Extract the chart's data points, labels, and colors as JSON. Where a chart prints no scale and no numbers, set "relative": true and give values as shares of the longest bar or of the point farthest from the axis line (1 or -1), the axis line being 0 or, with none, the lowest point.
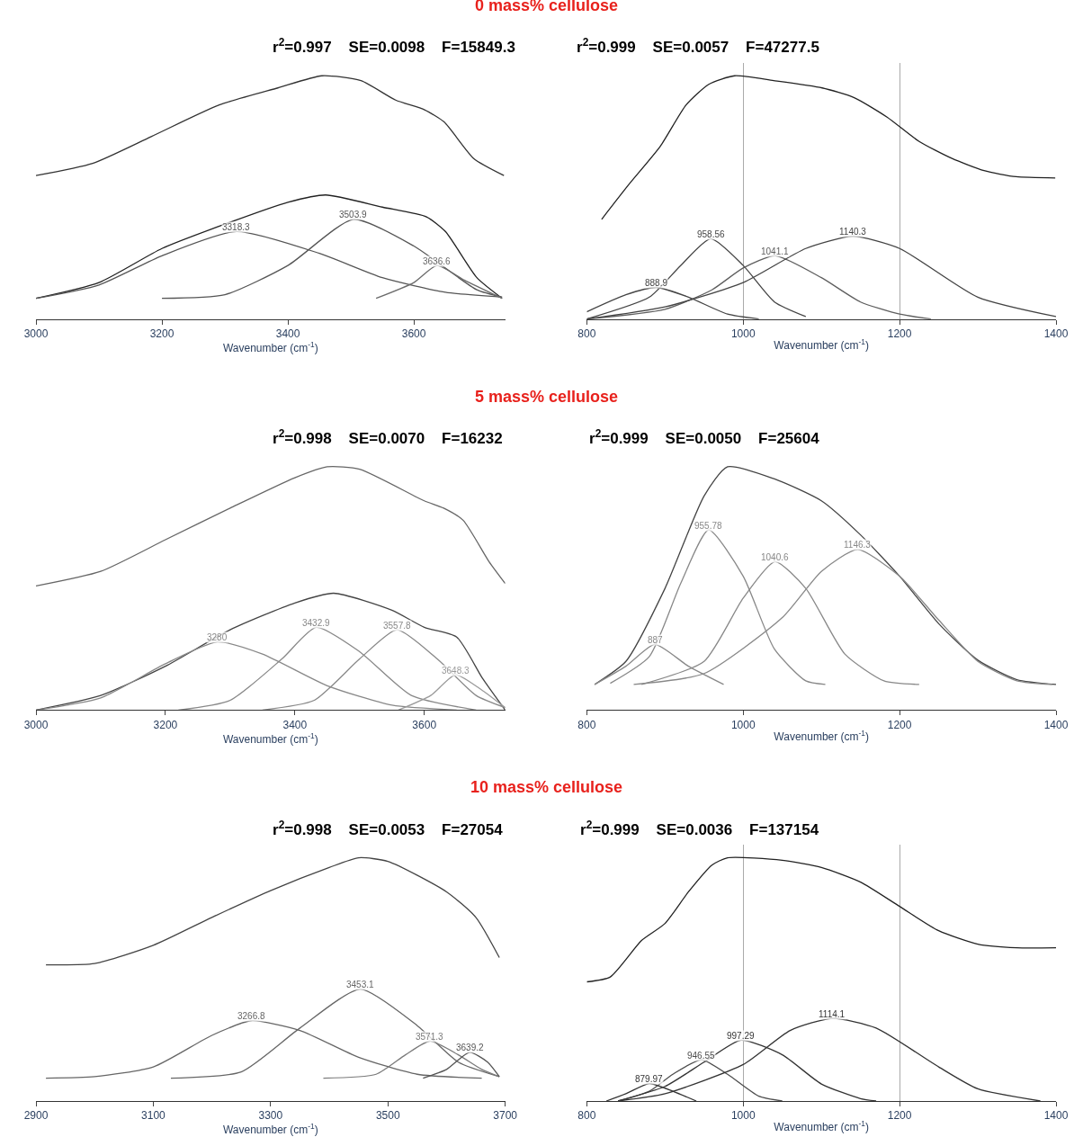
{
  "chart_data": [
    {
      "type": "line",
      "relative": true,
      "title": "r$^{2}$=0.997    SE=0.0098    F=15849.3",
      "xlabel": "Wavenumber (cm$^{-1}$)",
      "xlim": [
        3000,
        3745
      ],
      "xticks": [
        3000,
        3200,
        3400,
        3600
      ],
      "annotations": [
        "0 mass% cellulose"
      ],
      "series": [
        {
          "color": "#333333",
          "x": [
            3000,
            3090,
            3183,
            3291,
            3384,
            3454,
            3516,
            3571,
            3617,
            3648,
            3695,
            3743
          ],
          "values": [
            0.59,
            0.64,
            0.75,
            0.88,
            0.95,
            1.0,
            0.98,
            0.9,
            0.86,
            0.81,
            0.66,
            0.59
          ]
        },
        {
          "color": "#222222",
          "x": [
            3000,
            3100,
            3200,
            3300,
            3400,
            3460,
            3550,
            3620,
            3650,
            3700,
            3740
          ],
          "values": [
            0.085,
            0.15,
            0.29,
            0.39,
            0.48,
            0.51,
            0.46,
            0.42,
            0.36,
            0.17,
            0.085
          ]
        },
        {
          "name": "3318.3",
          "color": "#555555",
          "x": [
            3000,
            3100,
            3200,
            3318.3,
            3450,
            3550,
            3650,
            3740
          ],
          "values": [
            0.085,
            0.14,
            0.26,
            0.36,
            0.27,
            0.17,
            0.11,
            0.09
          ]
        },
        {
          "name": "3503.9",
          "color": "#555555",
          "x": [
            3200,
            3300,
            3400,
            3503.9,
            3600,
            3700,
            3740
          ],
          "values": [
            0.085,
            0.1,
            0.22,
            0.41,
            0.3,
            0.12,
            0.09
          ]
        },
        {
          "name": "3636.6",
          "color": "#6a6a6a",
          "x": [
            3540,
            3600,
            3636.6,
            3680,
            3740
          ],
          "values": [
            0.085,
            0.15,
            0.22,
            0.16,
            0.085
          ]
        }
      ]
    },
    {
      "type": "line",
      "relative": true,
      "title": "r$^{2}$=0.999    SE=0.0057    F=47277.5",
      "xlabel": "Wavenumber (cm$^{-1}$)",
      "xlim": [
        800,
        1400
      ],
      "xticks": [
        800,
        1000,
        1200,
        1400
      ],
      "grid": "x",
      "series": [
        {
          "color": "#222222",
          "x": [
            819,
            853,
            894,
            927,
            956,
            989,
            1039,
            1101,
            1142,
            1184,
            1225,
            1267,
            1308,
            1349,
            1399
          ],
          "values": [
            0.41,
            0.55,
            0.71,
            0.88,
            0.965,
            1.0,
            0.98,
            0.95,
            0.91,
            0.83,
            0.73,
            0.66,
            0.61,
            0.585,
            0.58
          ]
        },
        {
          "name": "888.9",
          "color": "#444444",
          "x": [
            800,
            850,
            888.9,
            930,
            980,
            1020
          ],
          "values": [
            0.03,
            0.1,
            0.13,
            0.09,
            0.02,
            0.0
          ]
        },
        {
          "name": "958.56",
          "color": "#444444",
          "x": [
            800,
            880,
            920,
            958.56,
            1000,
            1040,
            1080
          ],
          "values": [
            0.0,
            0.09,
            0.22,
            0.33,
            0.22,
            0.07,
            0.01
          ]
        },
        {
          "name": "1041.1",
          "color": "#5e5e5e",
          "x": [
            800,
            900,
            960,
            1000,
            1041.1,
            1100,
            1150,
            1200,
            1240
          ],
          "values": [
            0.0,
            0.04,
            0.12,
            0.21,
            0.26,
            0.17,
            0.07,
            0.02,
            0.0
          ]
        },
        {
          "name": "1140.3",
          "color": "#444444",
          "x": [
            800,
            900,
            1000,
            1080,
            1140.3,
            1200,
            1300,
            1400
          ],
          "values": [
            0.0,
            0.05,
            0.15,
            0.29,
            0.34,
            0.29,
            0.09,
            0.01
          ]
        }
      ]
    },
    {
      "type": "line",
      "relative": true,
      "title": "r$^{2}$=0.998    SE=0.0070    F=16232",
      "xlabel": "Wavenumber (cm$^{-1}$)",
      "xlim": [
        3000,
        3725
      ],
      "xticks": [
        3000,
        3200,
        3400,
        3600
      ],
      "annotations": [
        "5 mass% cellulose"
      ],
      "series": [
        {
          "color": "#666666",
          "x": [
            3000,
            3100,
            3200,
            3300,
            3400,
            3450,
            3500,
            3600,
            3630,
            3660,
            3700,
            3725
          ],
          "values": [
            0.51,
            0.57,
            0.7,
            0.83,
            0.955,
            1.0,
            0.99,
            0.86,
            0.83,
            0.78,
            0.61,
            0.52
          ]
        },
        {
          "color": "#444444",
          "x": [
            3000,
            3100,
            3200,
            3300,
            3400,
            3460,
            3550,
            3600,
            3650,
            3690,
            3725
          ],
          "values": [
            0.0,
            0.06,
            0.18,
            0.33,
            0.44,
            0.48,
            0.41,
            0.34,
            0.3,
            0.13,
            0.0
          ]
        },
        {
          "name": "3280",
          "color": "#888888",
          "x": [
            3000,
            3100,
            3200,
            3280,
            3350,
            3450,
            3550,
            3650
          ],
          "values": [
            0.0,
            0.05,
            0.19,
            0.28,
            0.23,
            0.1,
            0.02,
            0.0
          ]
        },
        {
          "name": "3432.9",
          "color": "#888888",
          "x": [
            3220,
            3300,
            3380,
            3432.9,
            3500,
            3580,
            3680
          ],
          "values": [
            0.0,
            0.04,
            0.21,
            0.34,
            0.24,
            0.06,
            0.0
          ]
        },
        {
          "name": "3557.8",
          "color": "#888888",
          "x": [
            3350,
            3430,
            3500,
            3557.8,
            3620,
            3680,
            3725
          ],
          "values": [
            0.0,
            0.04,
            0.21,
            0.33,
            0.21,
            0.06,
            0.01
          ]
        },
        {
          "name": "3648.3",
          "color": "#9a9a9a",
          "x": [
            3560,
            3610,
            3648.3,
            3690,
            3725
          ],
          "values": [
            0.0,
            0.06,
            0.145,
            0.08,
            0.01
          ]
        }
      ]
    },
    {
      "type": "line",
      "relative": true,
      "title": "r$^{2}$=0.999    SE=0.0050    F=25604",
      "xlabel": "Wavenumber (cm$^{-1}$)",
      "xlim": [
        800,
        1400
      ],
      "xticks": [
        800,
        1000,
        1200,
        1400
      ],
      "series": [
        {
          "color": "#444444",
          "x": [
            810,
            850,
            900,
            950,
            980,
            1040,
            1100,
            1150,
            1200,
            1250,
            1300,
            1350,
            1400
          ],
          "values": [
            0.105,
            0.2,
            0.5,
            0.88,
            1.0,
            0.95,
            0.86,
            0.72,
            0.55,
            0.355,
            0.205,
            0.125,
            0.105
          ]
        },
        {
          "name": "887",
          "color": "#888888",
          "x": [
            810,
            850,
            887,
            930,
            975
          ],
          "values": [
            0.105,
            0.18,
            0.27,
            0.18,
            0.105
          ]
        },
        {
          "name": "955.78",
          "color": "#888888",
          "x": [
            830,
            880,
            920,
            955.78,
            1000,
            1040,
            1080,
            1105
          ],
          "values": [
            0.11,
            0.22,
            0.52,
            0.74,
            0.55,
            0.25,
            0.12,
            0.105
          ]
        },
        {
          "name": "1040.6",
          "color": "#888888",
          "x": [
            870,
            950,
            1000,
            1040.6,
            1080,
            1130,
            1180,
            1225
          ],
          "values": [
            0.105,
            0.2,
            0.46,
            0.61,
            0.5,
            0.23,
            0.12,
            0.105
          ]
        },
        {
          "name": "1146.3",
          "color": "#888888",
          "x": [
            860,
            950,
            1050,
            1100,
            1146.3,
            1200,
            1250,
            1300,
            1350,
            1395
          ],
          "values": [
            0.105,
            0.15,
            0.38,
            0.57,
            0.66,
            0.55,
            0.37,
            0.2,
            0.12,
            0.105
          ]
        }
      ]
    },
    {
      "type": "line",
      "relative": true,
      "title": "r$^{2}$=0.998    SE=0.0053    F=27054",
      "xlabel": "Wavenumber (cm$^{-1}$)",
      "xlim": [
        2900,
        3700
      ],
      "xticks": [
        2900,
        3100,
        3300,
        3500,
        3700
      ],
      "annotations": [
        "10 mass% cellulose"
      ],
      "series": [
        {
          "color": "#444444",
          "x": [
            2917,
            3000,
            3100,
            3200,
            3300,
            3400,
            3450,
            3500,
            3600,
            3650,
            3690
          ],
          "values": [
            0.56,
            0.565,
            0.64,
            0.755,
            0.865,
            0.96,
            1.0,
            0.985,
            0.86,
            0.755,
            0.59
          ]
        },
        {
          "name": "3266.8",
          "color": "#666666",
          "x": [
            2917,
            3000,
            3100,
            3200,
            3266.8,
            3350,
            3450,
            3550,
            3660
          ],
          "values": [
            0.094,
            0.1,
            0.14,
            0.27,
            0.33,
            0.29,
            0.18,
            0.11,
            0.094
          ]
        },
        {
          "name": "3453.1",
          "color": "#666666",
          "x": [
            3130,
            3250,
            3350,
            3453.1,
            3550,
            3620,
            3690
          ],
          "values": [
            0.094,
            0.12,
            0.3,
            0.46,
            0.31,
            0.16,
            0.1
          ]
        },
        {
          "name": "3571.3",
          "color": "#7a7a7a",
          "x": [
            3390,
            3480,
            3530,
            3571.3,
            3620,
            3660,
            3690
          ],
          "values": [
            0.094,
            0.11,
            0.19,
            0.246,
            0.19,
            0.13,
            0.1
          ]
        },
        {
          "name": "3639.2",
          "color": "#555555",
          "x": [
            3560,
            3600,
            3639.2,
            3670,
            3690
          ],
          "values": [
            0.094,
            0.13,
            0.2,
            0.16,
            0.1
          ]
        }
      ]
    },
    {
      "type": "line",
      "relative": true,
      "title": "r$^{2}$=0.999    SE=0.0036    F=137154",
      "xlabel": "Wavenumber (cm$^{-1}$)",
      "xlim": [
        800,
        1400
      ],
      "xticks": [
        800,
        1000,
        1200,
        1400
      ],
      "grid": "x",
      "series": [
        {
          "color": "#222222",
          "x": [
            800,
            830,
            870,
            900,
            930,
            960,
            980,
            1050,
            1100,
            1150,
            1200,
            1250,
            1300,
            1350,
            1400
          ],
          "values": [
            0.49,
            0.51,
            0.66,
            0.73,
            0.86,
            0.97,
            1.0,
            0.99,
            0.96,
            0.9,
            0.8,
            0.7,
            0.645,
            0.63,
            0.63
          ]
        },
        {
          "name": "879.97",
          "color": "#333333",
          "x": [
            825,
            850,
            879.97,
            910,
            940
          ],
          "values": [
            0.0,
            0.03,
            0.072,
            0.04,
            0.0
          ]
        },
        {
          "name": "946.55",
          "color": "#4c4c4c",
          "x": [
            840,
            880,
            910,
            946.55,
            980,
            1020,
            1050
          ],
          "values": [
            0.0,
            0.04,
            0.11,
            0.17,
            0.11,
            0.02,
            0.0
          ]
        },
        {
          "name": "997.29",
          "color": "#333333",
          "x": [
            840,
            900,
            950,
            997.29,
            1050,
            1100,
            1150,
            1170
          ],
          "values": [
            0.0,
            0.06,
            0.16,
            0.25,
            0.19,
            0.07,
            0.01,
            0.0
          ]
        },
        {
          "name": "1114.1",
          "color": "#333333",
          "x": [
            840,
            900,
            1000,
            1060,
            1114.1,
            1170,
            1250,
            1300,
            1380
          ],
          "values": [
            0.0,
            0.03,
            0.15,
            0.29,
            0.34,
            0.3,
            0.14,
            0.05,
            0.0
          ]
        }
      ]
    }
  ]
}
